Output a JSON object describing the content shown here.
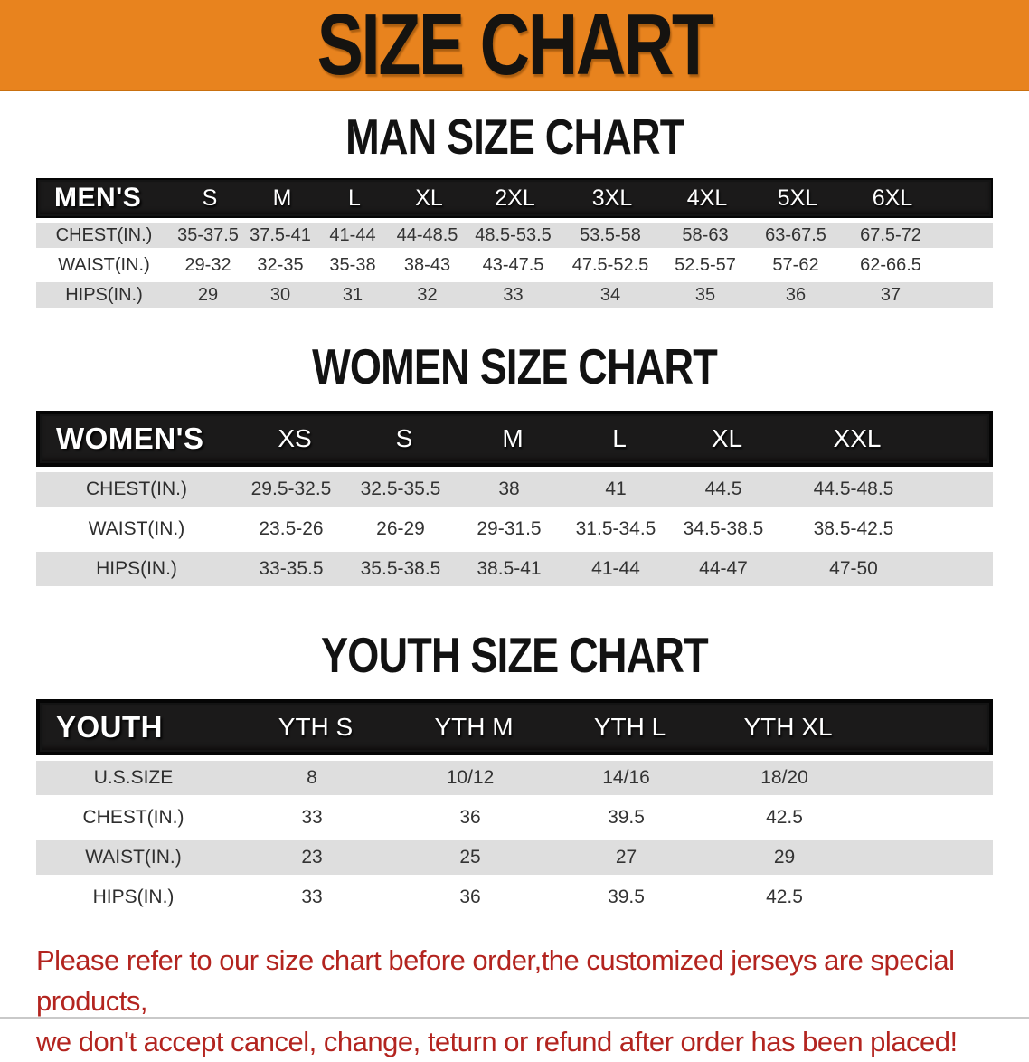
{
  "banner": {
    "title": "SIZE CHART",
    "bg_color": "#E8831E"
  },
  "colors": {
    "header_bar": "#1b1a1a",
    "row_stripe": "#DEDEDE",
    "disclaimer_text": "#B3241F"
  },
  "man": {
    "heading": "MAN SIZE CHART",
    "label": "MEN'S",
    "sizes": [
      "S",
      "M",
      "L",
      "XL",
      "2XL",
      "3XL",
      "4XL",
      "5XL",
      "6XL"
    ],
    "rows": [
      {
        "label": "CHEST(IN.)",
        "values": [
          "35-37.5",
          "37.5-41",
          "41-44",
          "44-48.5",
          "48.5-53.5",
          "53.5-58",
          "58-63",
          "63-67.5",
          "67.5-72"
        ]
      },
      {
        "label": "WAIST(IN.)",
        "values": [
          "29-32",
          "32-35",
          "35-38",
          "38-43",
          "43-47.5",
          "47.5-52.5",
          "52.5-57",
          "57-62",
          "62-66.5"
        ]
      },
      {
        "label": "HIPS(IN.)",
        "values": [
          "29",
          "30",
          "31",
          "32",
          "33",
          "34",
          "35",
          "36",
          "37"
        ]
      }
    ]
  },
  "women": {
    "heading": "WOMEN SIZE CHART",
    "label": "WOMEN'S",
    "sizes": [
      "XS",
      "S",
      "M",
      "L",
      "XL",
      "XXL"
    ],
    "rows": [
      {
        "label": "CHEST(IN.)",
        "values": [
          "29.5-32.5",
          "32.5-35.5",
          "38",
          "41",
          "44.5",
          "44.5-48.5"
        ]
      },
      {
        "label": "WAIST(IN.)",
        "values": [
          "23.5-26",
          "26-29",
          "29-31.5",
          "31.5-34.5",
          "34.5-38.5",
          "38.5-42.5"
        ]
      },
      {
        "label": "HIPS(IN.)",
        "values": [
          "33-35.5",
          "35.5-38.5",
          "38.5-41",
          "41-44",
          "44-47",
          "47-50"
        ]
      }
    ]
  },
  "youth": {
    "heading": "YOUTH SIZE CHART",
    "label": "YOUTH",
    "sizes": [
      "YTH S",
      "YTH M",
      "YTH L",
      "YTH XL"
    ],
    "rows": [
      {
        "label": "U.S.SIZE",
        "values": [
          "8",
          "10/12",
          "14/16",
          "18/20"
        ]
      },
      {
        "label": "CHEST(IN.)",
        "values": [
          "33",
          "36",
          "39.5",
          "42.5"
        ]
      },
      {
        "label": "WAIST(IN.)",
        "values": [
          "23",
          "25",
          "27",
          "29"
        ]
      },
      {
        "label": "HIPS(IN.)",
        "values": [
          "33",
          "36",
          "39.5",
          "42.5"
        ]
      }
    ]
  },
  "disclaimer": {
    "line1": "Please refer to our size chart before order,the customized jerseys are special products,",
    "line2": "we don't accept cancel, change, teturn or refund after order has been placed!"
  }
}
